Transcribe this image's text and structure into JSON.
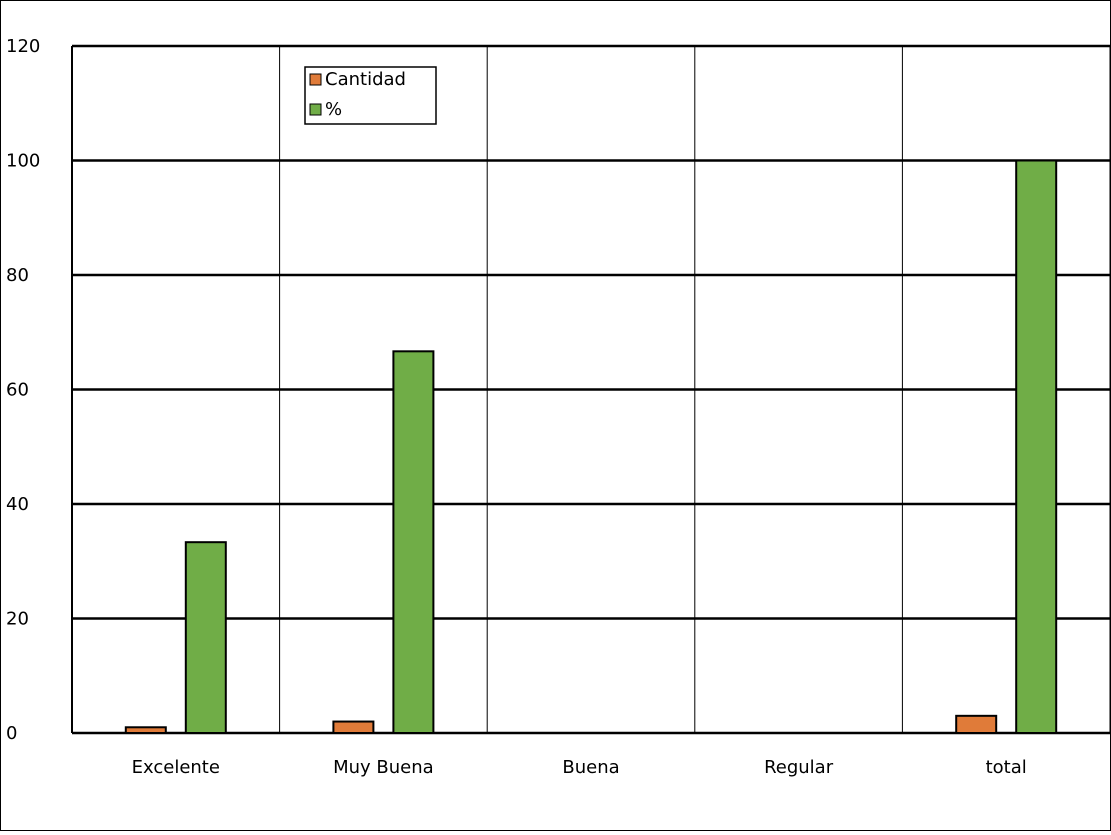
{
  "chart_data": {
    "type": "bar",
    "categories": [
      "Excelente",
      "Muy Buena",
      "Buena",
      "Regular",
      "total"
    ],
    "series": [
      {
        "name": "Cantidad",
        "values": [
          1,
          2,
          0,
          0,
          3
        ],
        "color": "#e07b39"
      },
      {
        "name": "%",
        "values": [
          33.33,
          66.67,
          0,
          0,
          100
        ],
        "color": "#70ad47"
      }
    ],
    "ylim": [
      0,
      120
    ],
    "yticks": [
      0,
      20,
      40,
      60,
      80,
      100,
      120
    ],
    "ytick_labels": [
      "0",
      "20",
      "40",
      "60",
      "80",
      "100",
      "120"
    ],
    "grid": true,
    "legend_position": "top-left"
  }
}
